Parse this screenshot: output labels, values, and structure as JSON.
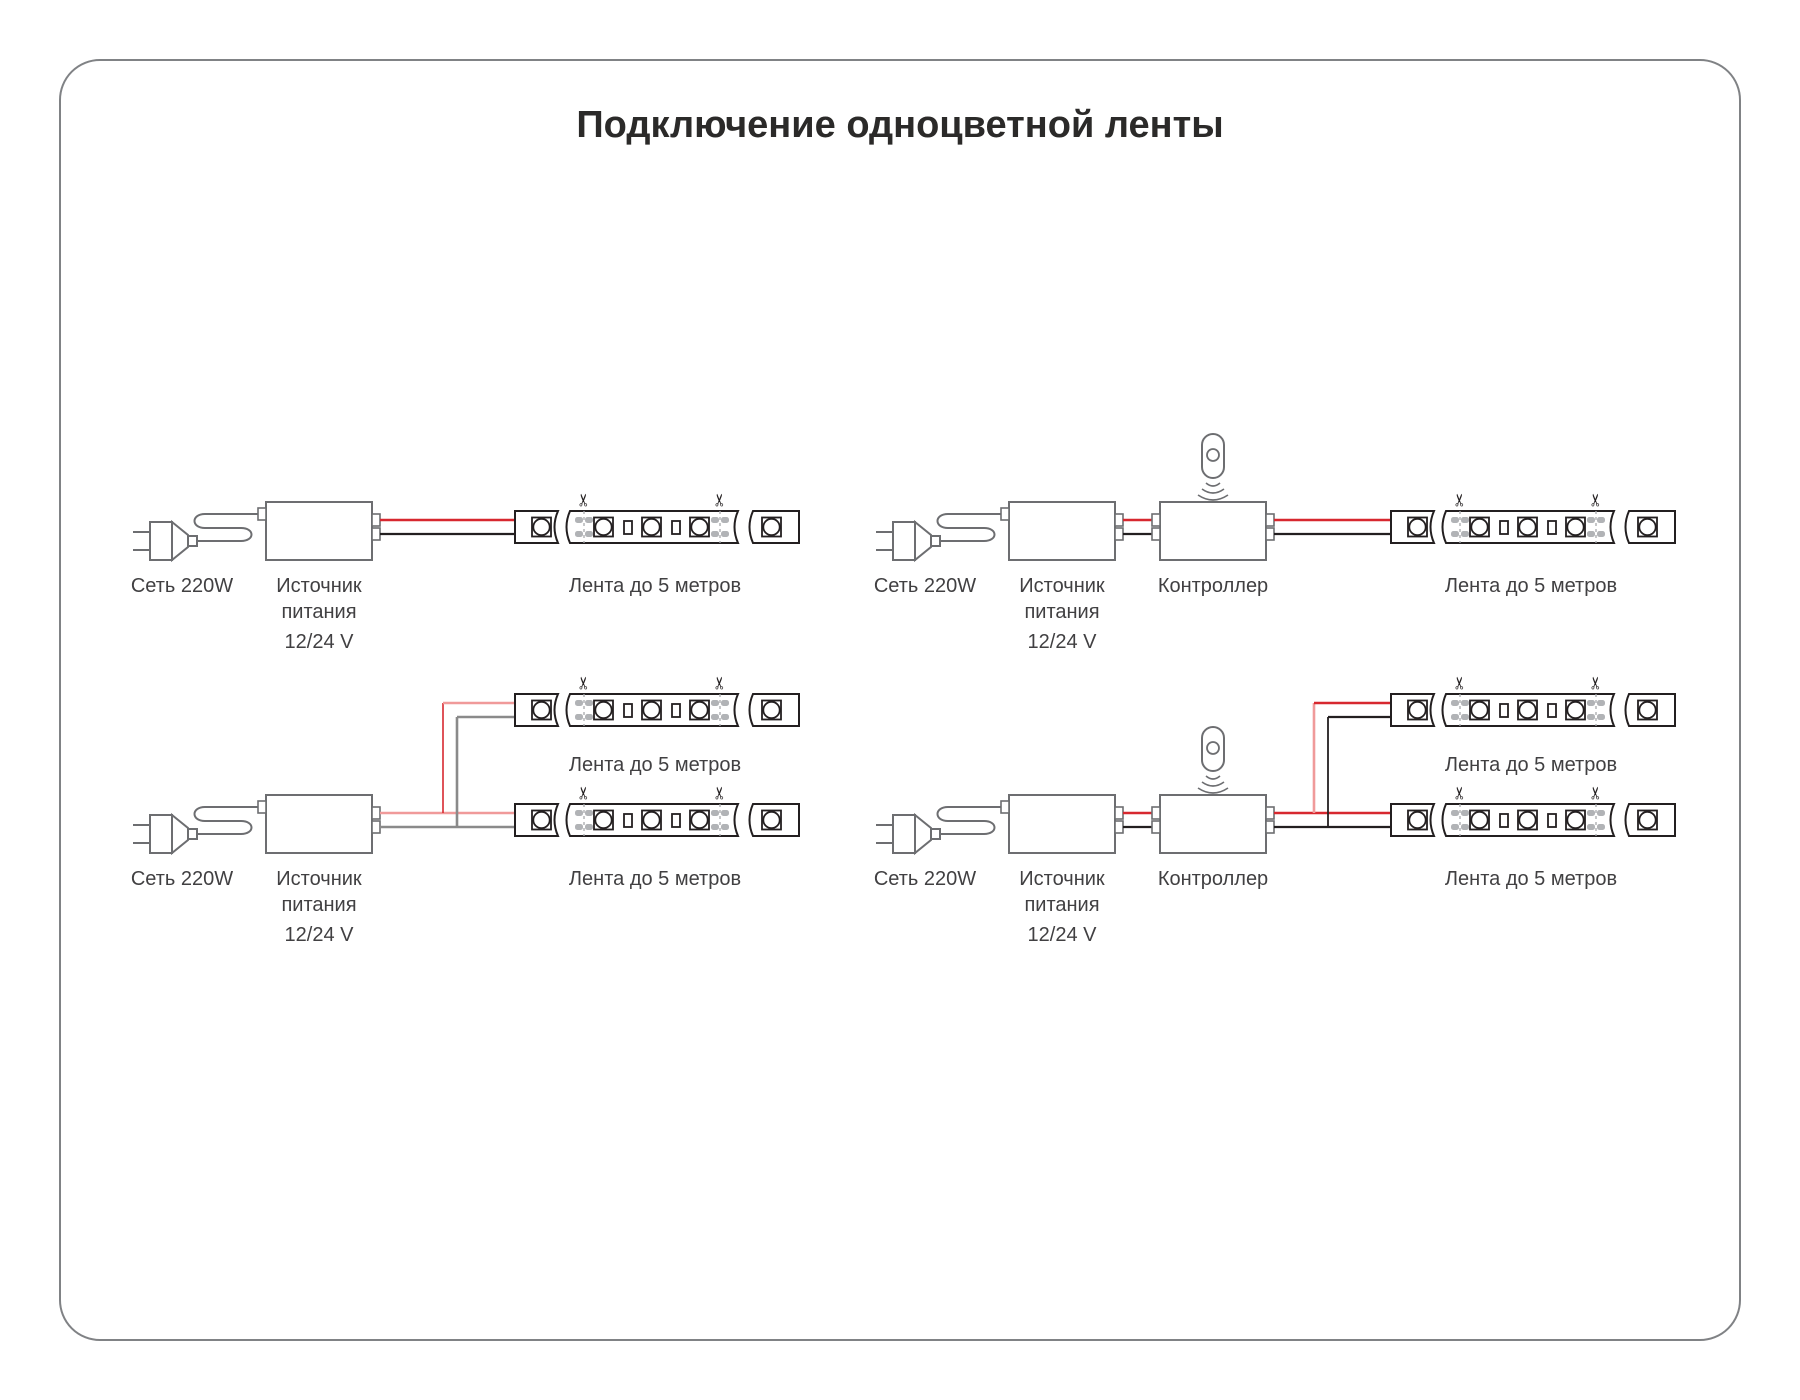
{
  "title": "Подключение одноцветной ленты",
  "labels": {
    "mains": "Сеть 220W",
    "psu_line1": "Источник",
    "psu_line2": "питания",
    "psu_voltage": "12/24 V",
    "controller": "Контроллер",
    "strip": "Лента до 5 метров"
  },
  "icons": {
    "scissors_glyph": "✂",
    "plug": "power-plug-icon",
    "remote": "remote-control-icon",
    "signal": "signal-waves-icon",
    "led": "led-chip-icon",
    "resistor": "resistor-icon",
    "pads": "solder-pads-icon"
  },
  "colors": {
    "wire_red": "#d7282f",
    "wire_red_light": "#f09a9a",
    "wire_black": "#231f20",
    "wire_gray": "#8a8a8a",
    "strip_outline": "#231f20",
    "device_outline": "#6d6e71",
    "pad_gray": "#b1b3b6",
    "cut_dash": "#a7a9ac",
    "panel_border": "#808285",
    "title_text": "#2b2a29",
    "label_text": "#414042"
  },
  "diagrams": [
    {
      "name": "psu-single-strip",
      "has_controller": false,
      "strips": 1
    },
    {
      "name": "psu-controller-single-strip",
      "has_controller": true,
      "strips": 1
    },
    {
      "name": "psu-two-strips",
      "has_controller": false,
      "strips": 2
    },
    {
      "name": "psu-controller-two-strips",
      "has_controller": true,
      "strips": 2
    }
  ]
}
